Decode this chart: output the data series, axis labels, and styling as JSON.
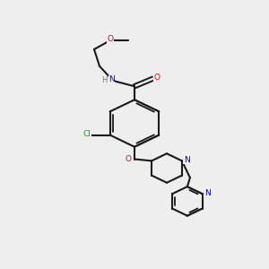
{
  "background_color": "#eeeeee",
  "bond_color": "#1a1a1a",
  "heteroatom_colors": {
    "O": "#e60000",
    "N": "#0000cc",
    "Cl": "#00aa00",
    "H": "#777777"
  },
  "figsize": [
    3.0,
    3.0
  ],
  "dpi": 100,
  "xlim": [
    0,
    10
  ],
  "ylim": [
    -1,
    11
  ]
}
